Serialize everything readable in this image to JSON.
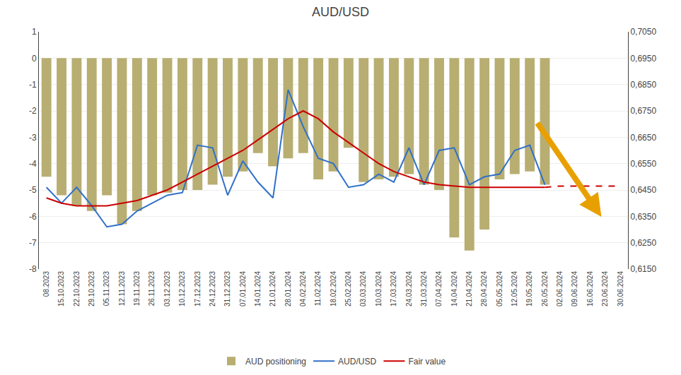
{
  "chart_data": {
    "type": "bar",
    "title": "AUD/USD",
    "categories": [
      "08.2023",
      "15.10.2023",
      "22.10.2023",
      "29.10.2023",
      "05.11.2023",
      "12.11.2023",
      "19.11.2023",
      "26.11.2023",
      "03.12.2023",
      "10.12.2023",
      "17.12.2023",
      "24.12.2023",
      "31.12.2023",
      "07.01.2024",
      "14.01.2024",
      "21.01.2024",
      "28.01.2024",
      "04.02.2024",
      "11.02.2024",
      "18.02.2024",
      "25.02.2024",
      "03.03.2024",
      "10.03.2024",
      "17.03.2024",
      "24.03.2024",
      "31.03.2024",
      "07.04.2024",
      "14.04.2024",
      "21.04.2024",
      "28.04.2024",
      "05.05.2024",
      "12.05.2024",
      "19.05.2024",
      "26.05.2024",
      "02.06.2024",
      "09.06.2024",
      "16.06.2024",
      "23.06.2024",
      "30.06.2024"
    ],
    "series": [
      {
        "name": "AUD positioning",
        "type": "bar",
        "color": "#b8ae72",
        "values": [
          -4.5,
          -5.2,
          -5.6,
          -5.8,
          -5.2,
          -6.3,
          -5.8,
          -5.2,
          -5.1,
          -5.0,
          -5.0,
          -4.8,
          -4.5,
          -4.3,
          -3.6,
          -4.1,
          -3.8,
          -3.6,
          -4.6,
          -4.3,
          -3.4,
          -4.7,
          -4.6,
          -4.5,
          -4.4,
          -4.8,
          -5.0,
          -6.8,
          -7.3,
          -6.5,
          -4.6,
          -4.4,
          -4.3,
          -4.8,
          0.0,
          0.0,
          0.0,
          0.0,
          0.0
        ]
      },
      {
        "name": "AUD/USD",
        "type": "line",
        "color": "#3070c8",
        "line_style": "solid",
        "values": [
          -4.9,
          -5.5,
          -4.9,
          -5.6,
          -6.4,
          -6.3,
          -5.8,
          -5.5,
          -5.2,
          -5.1,
          -3.3,
          -3.4,
          -5.2,
          -3.9,
          -4.7,
          -5.3,
          -1.2,
          -2.6,
          -3.8,
          -4.0,
          -4.9,
          -4.8,
          -4.4,
          -4.7,
          -3.4,
          -4.8,
          -3.5,
          -3.4,
          -4.8,
          -4.5,
          -4.4,
          -3.5,
          -3.3,
          -4.8,
          null,
          null,
          null,
          null,
          null
        ]
      },
      {
        "name": "Fair value",
        "type": "line",
        "color": "#cc0000",
        "line_style": "solid",
        "values": [
          -5.3,
          -5.5,
          -5.6,
          -5.6,
          -5.6,
          -5.5,
          -5.4,
          -5.2,
          -5.0,
          -4.7,
          -4.4,
          -4.1,
          -3.8,
          -3.5,
          -3.1,
          -2.7,
          -2.3,
          -2.0,
          -2.3,
          -2.8,
          -3.2,
          -3.6,
          -4.0,
          -4.3,
          -4.5,
          -4.7,
          -4.8,
          -4.85,
          -4.9,
          -4.9,
          -4.9,
          -4.9,
          -4.9,
          -4.9,
          null,
          null,
          null,
          null,
          null
        ]
      },
      {
        "name": "Fair value",
        "type": "line",
        "color": "#cc0000",
        "line_style": "dashed",
        "values": [
          null,
          null,
          null,
          null,
          null,
          null,
          null,
          null,
          null,
          null,
          null,
          null,
          null,
          null,
          null,
          null,
          null,
          null,
          null,
          null,
          null,
          null,
          null,
          null,
          null,
          null,
          null,
          null,
          null,
          null,
          null,
          null,
          null,
          -4.9,
          -4.85,
          -4.85,
          -4.85,
          -4.85,
          -4.85
        ]
      }
    ],
    "ylim": [
      -8,
      1
    ],
    "yticks": [
      -8,
      -7,
      -6,
      -5,
      -4,
      -3,
      -2,
      -1,
      0,
      1
    ],
    "y2lim": [
      0.615,
      0.705
    ],
    "y2ticks": [
      {
        "value": 0.615,
        "label": "0,6150"
      },
      {
        "value": 0.625,
        "label": "0,6250"
      },
      {
        "value": 0.635,
        "label": "0,6350"
      },
      {
        "value": 0.645,
        "label": "0,6450"
      },
      {
        "value": 0.655,
        "label": "0,6550"
      },
      {
        "value": 0.665,
        "label": "0,6650"
      },
      {
        "value": 0.675,
        "label": "0,6750"
      },
      {
        "value": 0.685,
        "label": "0,6850"
      },
      {
        "value": 0.695,
        "label": "0,6950"
      },
      {
        "value": 0.705,
        "label": "0,7050"
      }
    ],
    "grid": true,
    "legend": "bottom"
  }
}
